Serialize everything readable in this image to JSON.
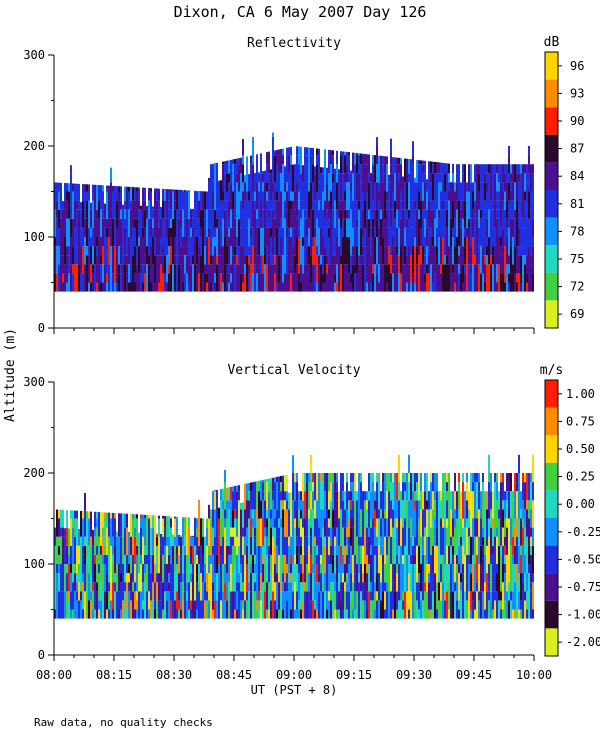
{
  "title": "Dixon, CA  6 May 2007  Day 126",
  "footnote": "Raw data, no quality checks",
  "chart_data": [
    {
      "type": "heatmap",
      "title": "Reflectivity",
      "xlabel": "UT  (PST + 8)",
      "ylabel": "Altitude (m)",
      "xlim": [
        "08:00",
        "10:00"
      ],
      "xticks": [
        "08:00",
        "08:15",
        "08:30",
        "08:45",
        "09:00",
        "09:15",
        "09:30",
        "09:45",
        "10:00"
      ],
      "ylim": [
        0,
        300
      ],
      "yticks": [
        0,
        100,
        200,
        300
      ],
      "colorbar": {
        "unit": "dB",
        "labels": [
          "96",
          "93",
          "90",
          "87",
          "84",
          "81",
          "78",
          "75",
          "72",
          "69"
        ],
        "colors": [
          "#ffd400",
          "#ff8c00",
          "#ff1e00",
          "#2a0a2a",
          "#4b1090",
          "#2030e0",
          "#1090ff",
          "#20d8c0",
          "#40d040",
          "#d8f020"
        ]
      },
      "data_extent": {
        "min_altitude_m": 40,
        "top_altitude_m": [
          {
            "time": "08:00",
            "alt": 160
          },
          {
            "time": "08:38",
            "alt": 150
          },
          {
            "time": "08:39",
            "alt": 180
          },
          {
            "time": "09:00",
            "alt": 200
          },
          {
            "time": "09:40",
            "alt": 180
          },
          {
            "time": "10:00",
            "alt": 180
          }
        ]
      }
    },
    {
      "type": "heatmap",
      "title": "Vertical Velocity",
      "xlabel": "UT  (PST + 8)",
      "ylabel": "Altitude (m)",
      "xlim": [
        "08:00",
        "10:00"
      ],
      "xticks": [
        "08:00",
        "08:15",
        "08:30",
        "08:45",
        "09:00",
        "09:15",
        "09:30",
        "09:45",
        "10:00"
      ],
      "ylim": [
        0,
        300
      ],
      "yticks": [
        0,
        100,
        200,
        300
      ],
      "colorbar": {
        "unit": "m/s",
        "labels": [
          "1.00",
          "0.75",
          "0.50",
          "0.25",
          "0.00",
          "-0.25",
          "-0.50",
          "-0.75",
          "-1.00",
          "-2.00"
        ],
        "colors": [
          "#ff1e00",
          "#ff8c00",
          "#ffd400",
          "#40d040",
          "#20d8c0",
          "#1090ff",
          "#2030e0",
          "#4b1090",
          "#2a0a2a",
          "#d8f020"
        ]
      },
      "data_extent": {
        "min_altitude_m": 40,
        "top_altitude_m": [
          {
            "time": "08:00",
            "alt": 160
          },
          {
            "time": "08:38",
            "alt": 150
          },
          {
            "time": "08:39",
            "alt": 180
          },
          {
            "time": "09:00",
            "alt": 200
          },
          {
            "time": "09:40",
            "alt": 200
          },
          {
            "time": "10:00",
            "alt": 200
          }
        ]
      }
    }
  ]
}
